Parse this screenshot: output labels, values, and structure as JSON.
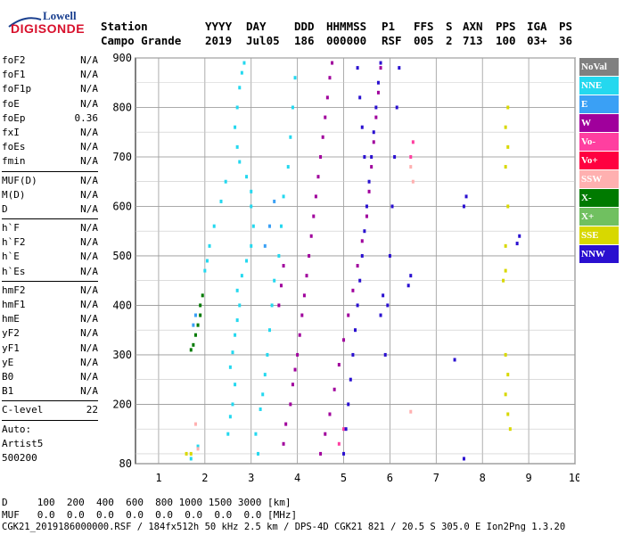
{
  "logo": {
    "brand": "Lowell",
    "product": "DIGISONDE"
  },
  "header": {
    "labels": [
      "Station",
      "YYYY",
      "DAY",
      "DDD",
      "HHMMSS",
      "P1",
      "FFS",
      "S",
      "AXN",
      "PPS",
      "IGA",
      "PS"
    ],
    "values": [
      "Campo Grande",
      "2019",
      "Jul05",
      "186",
      "000000",
      "RSF",
      "005",
      "2",
      "713",
      "100",
      "03+",
      "36"
    ]
  },
  "params": [
    {
      "k": "foF2",
      "v": "N/A"
    },
    {
      "k": "foF1",
      "v": "N/A"
    },
    {
      "k": "foF1p",
      "v": "N/A"
    },
    {
      "k": "foE",
      "v": "N/A"
    },
    {
      "k": "foEp",
      "v": "0.36"
    },
    {
      "k": "fxI",
      "v": "N/A"
    },
    {
      "k": "foEs",
      "v": "N/A"
    },
    {
      "k": "fmin",
      "v": "N/A"
    },
    {
      "k": "MUF(D)",
      "v": "N/A"
    },
    {
      "k": "M(D)",
      "v": "N/A"
    },
    {
      "k": "D",
      "v": "N/A"
    },
    {
      "k": "h`F",
      "v": "N/A"
    },
    {
      "k": "h`F2",
      "v": "N/A"
    },
    {
      "k": "h`E",
      "v": "N/A"
    },
    {
      "k": "h`Es",
      "v": "N/A"
    },
    {
      "k": "hmF2",
      "v": "N/A"
    },
    {
      "k": "hmF1",
      "v": "N/A"
    },
    {
      "k": "hmE",
      "v": "N/A"
    },
    {
      "k": "yF2",
      "v": "N/A"
    },
    {
      "k": "yF1",
      "v": "N/A"
    },
    {
      "k": "yE",
      "v": "N/A"
    },
    {
      "k": "B0",
      "v": "N/A"
    },
    {
      "k": "B1",
      "v": "N/A"
    },
    {
      "k": "C-level",
      "v": "22"
    }
  ],
  "auto": {
    "label": "Auto:",
    "artist": "Artist5",
    "version": "500200"
  },
  "legend": [
    {
      "label": "NoVal",
      "color": "#808080"
    },
    {
      "label": "NNE",
      "color": "#24d8ef"
    },
    {
      "label": "E",
      "color": "#3aa0f5"
    },
    {
      "label": "W",
      "color": "#a0009c"
    },
    {
      "label": "Vo-",
      "color": "#ff3fa0"
    },
    {
      "label": "Vo+",
      "color": "#ff0040"
    },
    {
      "label": "SSW",
      "color": "#ffb0b0"
    },
    {
      "label": "X-",
      "color": "#007a00"
    },
    {
      "label": "X+",
      "color": "#70c060"
    },
    {
      "label": "SSE",
      "color": "#d8d800"
    },
    {
      "label": "NNW",
      "color": "#2a10d0"
    }
  ],
  "footer": {
    "line1": "D     100  200  400  600  800 1000 1500 3000 [km]",
    "line2": "MUF   0.0  0.0  0.0  0.0  0.0  0.0  0.0  0.0 [MHz]",
    "line3": "CGK21_2019186000000.RSF / 184fx512h 50 kHz 2.5 km / DPS-4D CGK21 821 / 20.5 S 305.0 E Ion2Png 1.3.20"
  },
  "chart_data": {
    "type": "scatter",
    "xlim": [
      0.5,
      10
    ],
    "ylim": [
      80,
      900
    ],
    "xticks": [
      1,
      2,
      3,
      4,
      5,
      6,
      7,
      8,
      9,
      10
    ],
    "yticks": [
      80,
      200,
      300,
      400,
      500,
      600,
      700,
      800,
      900
    ],
    "grid": true,
    "series": [
      {
        "name": "NNE",
        "color": "#24d8ef",
        "points": [
          [
            1.7,
            90
          ],
          [
            1.85,
            115
          ],
          [
            2.5,
            140
          ],
          [
            2.55,
            175
          ],
          [
            2.6,
            200
          ],
          [
            2.65,
            240
          ],
          [
            2.55,
            275
          ],
          [
            2.6,
            305
          ],
          [
            2.65,
            340
          ],
          [
            2.7,
            370
          ],
          [
            2.75,
            400
          ],
          [
            2.7,
            430
          ],
          [
            2.8,
            460
          ],
          [
            2.9,
            490
          ],
          [
            3.0,
            520
          ],
          [
            3.05,
            560
          ],
          [
            3.0,
            600
          ],
          [
            3.0,
            630
          ],
          [
            2.9,
            660
          ],
          [
            2.75,
            690
          ],
          [
            2.7,
            720
          ],
          [
            2.65,
            760
          ],
          [
            2.7,
            800
          ],
          [
            2.75,
            840
          ],
          [
            2.8,
            870
          ],
          [
            2.85,
            890
          ],
          [
            3.15,
            100
          ],
          [
            3.1,
            140
          ],
          [
            3.2,
            190
          ],
          [
            3.25,
            220
          ],
          [
            3.3,
            260
          ],
          [
            3.35,
            300
          ],
          [
            3.4,
            350
          ],
          [
            3.45,
            400
          ],
          [
            3.5,
            450
          ],
          [
            3.6,
            500
          ],
          [
            3.65,
            560
          ],
          [
            3.7,
            620
          ],
          [
            3.8,
            680
          ],
          [
            3.85,
            740
          ],
          [
            3.9,
            800
          ],
          [
            3.95,
            860
          ],
          [
            2.0,
            470
          ],
          [
            2.05,
            490
          ],
          [
            2.1,
            520
          ],
          [
            2.2,
            560
          ],
          [
            2.35,
            610
          ],
          [
            2.45,
            650
          ]
        ]
      },
      {
        "name": "E",
        "color": "#3aa0f5",
        "points": [
          [
            1.75,
            360
          ],
          [
            1.8,
            380
          ],
          [
            3.3,
            520
          ],
          [
            3.4,
            560
          ],
          [
            3.5,
            610
          ]
        ]
      },
      {
        "name": "W",
        "color": "#a0009c",
        "points": [
          [
            3.7,
            120
          ],
          [
            3.75,
            160
          ],
          [
            3.85,
            200
          ],
          [
            3.9,
            240
          ],
          [
            3.95,
            270
          ],
          [
            4.0,
            300
          ],
          [
            4.05,
            340
          ],
          [
            4.1,
            380
          ],
          [
            4.15,
            420
          ],
          [
            4.2,
            460
          ],
          [
            4.25,
            500
          ],
          [
            4.3,
            540
          ],
          [
            4.35,
            580
          ],
          [
            4.4,
            620
          ],
          [
            4.45,
            660
          ],
          [
            4.5,
            700
          ],
          [
            4.55,
            740
          ],
          [
            4.6,
            780
          ],
          [
            4.65,
            820
          ],
          [
            4.7,
            860
          ],
          [
            4.75,
            890
          ],
          [
            4.5,
            100
          ],
          [
            4.6,
            140
          ],
          [
            4.7,
            180
          ],
          [
            4.8,
            230
          ],
          [
            4.9,
            280
          ],
          [
            5.0,
            330
          ],
          [
            5.1,
            380
          ],
          [
            5.2,
            430
          ],
          [
            5.3,
            480
          ],
          [
            5.4,
            530
          ],
          [
            5.5,
            580
          ],
          [
            5.55,
            630
          ],
          [
            5.6,
            680
          ],
          [
            5.65,
            730
          ],
          [
            5.7,
            780
          ],
          [
            5.75,
            830
          ],
          [
            5.8,
            880
          ],
          [
            3.6,
            400
          ],
          [
            3.65,
            440
          ],
          [
            3.7,
            480
          ]
        ]
      },
      {
        "name": "Vo-",
        "color": "#ff3fa0",
        "points": [
          [
            4.9,
            120
          ],
          [
            5.0,
            150
          ],
          [
            6.45,
            700
          ],
          [
            6.5,
            730
          ]
        ]
      },
      {
        "name": "SSW",
        "color": "#ffb0b0",
        "points": [
          [
            6.45,
            680
          ],
          [
            6.5,
            650
          ],
          [
            6.45,
            185
          ],
          [
            1.8,
            160
          ],
          [
            1.85,
            110
          ]
        ]
      },
      {
        "name": "X-",
        "color": "#007a00",
        "points": [
          [
            1.7,
            310
          ],
          [
            1.75,
            320
          ],
          [
            1.8,
            340
          ],
          [
            1.85,
            360
          ],
          [
            1.9,
            380
          ],
          [
            1.9,
            400
          ],
          [
            1.95,
            420
          ]
        ]
      },
      {
        "name": "SSE",
        "color": "#d8d800",
        "points": [
          [
            1.6,
            100
          ],
          [
            1.7,
            100
          ],
          [
            8.45,
            450
          ],
          [
            8.5,
            470
          ],
          [
            8.5,
            520
          ],
          [
            8.55,
            600
          ],
          [
            8.5,
            680
          ],
          [
            8.55,
            720
          ],
          [
            8.5,
            760
          ],
          [
            8.55,
            800
          ],
          [
            8.5,
            300
          ],
          [
            8.55,
            260
          ],
          [
            8.5,
            220
          ],
          [
            8.55,
            180
          ],
          [
            8.6,
            150
          ]
        ]
      },
      {
        "name": "NNW",
        "color": "#2a10d0",
        "points": [
          [
            5.0,
            100
          ],
          [
            5.05,
            150
          ],
          [
            5.1,
            200
          ],
          [
            5.15,
            250
          ],
          [
            5.2,
            300
          ],
          [
            5.25,
            350
          ],
          [
            5.3,
            400
          ],
          [
            5.35,
            450
          ],
          [
            5.4,
            500
          ],
          [
            5.45,
            550
          ],
          [
            5.5,
            600
          ],
          [
            5.55,
            650
          ],
          [
            5.6,
            700
          ],
          [
            5.65,
            750
          ],
          [
            5.7,
            800
          ],
          [
            5.75,
            850
          ],
          [
            5.8,
            890
          ],
          [
            5.9,
            300
          ],
          [
            5.95,
            400
          ],
          [
            6.0,
            500
          ],
          [
            6.05,
            600
          ],
          [
            6.1,
            700
          ],
          [
            6.15,
            800
          ],
          [
            6.2,
            880
          ],
          [
            5.3,
            880
          ],
          [
            5.35,
            820
          ],
          [
            5.4,
            760
          ],
          [
            5.45,
            700
          ],
          [
            7.4,
            290
          ],
          [
            7.6,
            600
          ],
          [
            7.65,
            620
          ],
          [
            7.6,
            90
          ],
          [
            8.75,
            525
          ],
          [
            8.8,
            540
          ],
          [
            6.4,
            440
          ],
          [
            6.45,
            460
          ],
          [
            5.8,
            380
          ],
          [
            5.85,
            420
          ]
        ]
      }
    ]
  }
}
